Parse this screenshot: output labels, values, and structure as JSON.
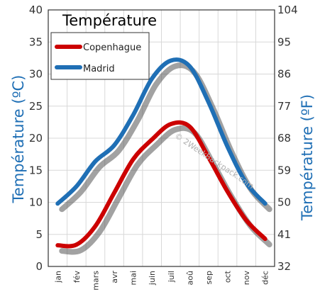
{
  "chart_data": {
    "type": "line",
    "title": "Température",
    "categories": [
      "jan",
      "fév",
      "mars",
      "avr",
      "mai",
      "juin",
      "juil",
      "aoû",
      "sep",
      "oct",
      "nov",
      "déc"
    ],
    "series": [
      {
        "name": "Copenhague",
        "color": "#cc0000",
        "values": [
          3.3,
          3.4,
          6.3,
          11.5,
          16.7,
          19.8,
          22.2,
          21.8,
          17.0,
          11.7,
          7.2,
          4.3
        ]
      },
      {
        "name": "Madrid",
        "color": "#1f6fb5",
        "values": [
          9.8,
          12.5,
          16.4,
          18.9,
          23.6,
          29.3,
          32.1,
          31.2,
          25.6,
          18.7,
          13.0,
          9.8
        ]
      }
    ],
    "ylabel_left": "Température  (ºC)",
    "ylabel_right": "Température  (ºF)",
    "ylim_left": [
      0,
      40
    ],
    "ylim_right": [
      32,
      104
    ],
    "yticks_left": [
      "0",
      "5",
      "10",
      "15",
      "20",
      "25",
      "30",
      "35",
      "40"
    ],
    "yticks_right": [
      "32",
      "41",
      "50",
      "59",
      "68",
      "77",
      "86",
      "95",
      "104"
    ],
    "grid": true,
    "legend_position": "top-left",
    "axis_title_color": "#1f6fb5"
  },
  "watermark": "© 2WeekBackpack.com"
}
